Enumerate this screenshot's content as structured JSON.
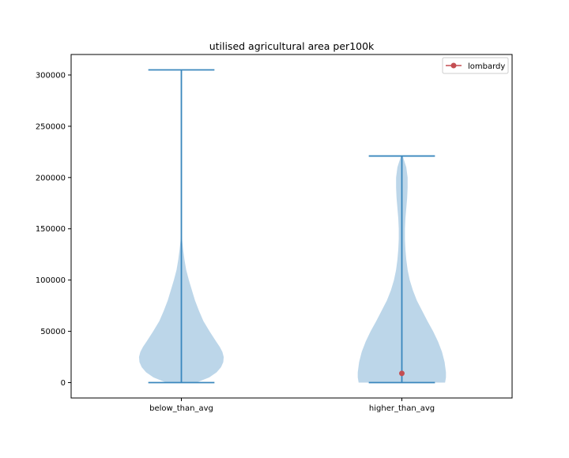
{
  "chart_data": {
    "type": "violin",
    "title": "utilised agricultural area per100k",
    "xlabel": "",
    "ylabel": "",
    "categories": [
      "below_than_avg",
      "higher_than_avg"
    ],
    "ylim": [
      -15000,
      320000
    ],
    "yticks": [
      0,
      50000,
      100000,
      150000,
      200000,
      250000,
      300000
    ],
    "ytick_labels": [
      "0",
      "50000",
      "100000",
      "150000",
      "200000",
      "250000",
      "300000"
    ],
    "grid": false,
    "legend": {
      "position": "top-right",
      "entries": [
        {
          "label": "lombardy",
          "color": "#c44e52",
          "marker": "circle-line"
        }
      ]
    },
    "colors": {
      "violin_fill": "#b8d4e8",
      "violin_line": "#3a87bd",
      "point": "#c44e52"
    },
    "violins": [
      {
        "category": "below_than_avg",
        "min": 0,
        "max": 305000,
        "density": [
          [
            0,
            0.34
          ],
          [
            5000,
            0.63
          ],
          [
            10000,
            0.8
          ],
          [
            15000,
            0.9
          ],
          [
            20000,
            0.95
          ],
          [
            25000,
            0.96
          ],
          [
            30000,
            0.93
          ],
          [
            35000,
            0.87
          ],
          [
            40000,
            0.79
          ],
          [
            50000,
            0.64
          ],
          [
            60000,
            0.5
          ],
          [
            70000,
            0.4
          ],
          [
            80000,
            0.31
          ],
          [
            90000,
            0.24
          ],
          [
            100000,
            0.17
          ],
          [
            110000,
            0.11
          ],
          [
            120000,
            0.07
          ],
          [
            130000,
            0.04
          ],
          [
            140000,
            0.015
          ],
          [
            150000,
            0
          ]
        ]
      },
      {
        "category": "higher_than_avg",
        "min": 0,
        "max": 221000,
        "density": [
          [
            0,
            0.98
          ],
          [
            5000,
            1.0
          ],
          [
            10000,
            1.0
          ],
          [
            20000,
            0.97
          ],
          [
            30000,
            0.91
          ],
          [
            40000,
            0.82
          ],
          [
            50000,
            0.71
          ],
          [
            60000,
            0.58
          ],
          [
            70000,
            0.46
          ],
          [
            80000,
            0.34
          ],
          [
            90000,
            0.25
          ],
          [
            100000,
            0.18
          ],
          [
            110000,
            0.13
          ],
          [
            120000,
            0.1
          ],
          [
            130000,
            0.08
          ],
          [
            140000,
            0.07
          ],
          [
            150000,
            0.07
          ],
          [
            160000,
            0.08
          ],
          [
            170000,
            0.1
          ],
          [
            180000,
            0.12
          ],
          [
            190000,
            0.13
          ],
          [
            200000,
            0.13
          ],
          [
            210000,
            0.1
          ],
          [
            221000,
            0.02
          ]
        ]
      }
    ],
    "points": [
      {
        "category": "higher_than_avg",
        "y": 9000,
        "label": "lombardy"
      }
    ]
  }
}
